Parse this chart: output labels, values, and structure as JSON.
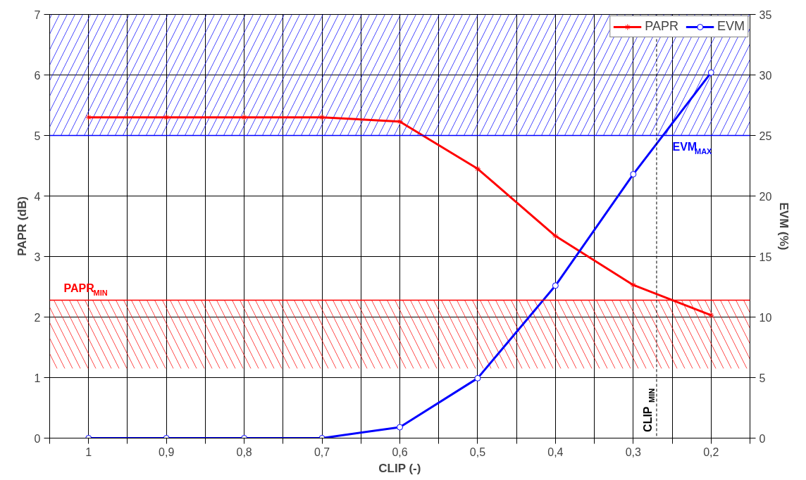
{
  "chart_data": {
    "type": "line",
    "xlabel": "CLIP (-)",
    "ylabel": "PAPR (dB)",
    "y2label": "EVM (%)",
    "x": [
      1,
      0.9,
      0.8,
      0.7,
      0.6,
      0.5,
      0.4,
      0.3,
      0.2
    ],
    "series": [
      {
        "name": "PAPR",
        "color": "#ff0000",
        "marker": "cross",
        "values": [
          5.3,
          5.3,
          5.3,
          5.3,
          5.23,
          4.45,
          3.34,
          2.53,
          2.03
        ]
      },
      {
        "name": "EVM",
        "color": "#0000ff",
        "marker": "circle",
        "axis": "y2",
        "values": [
          0,
          0,
          0,
          0,
          0.9,
          4.95,
          12.6,
          21.8,
          30.2
        ]
      }
    ],
    "xlim": [
      1.05,
      0.15
    ],
    "xticks": [
      {
        "value": 1.05,
        "label": null
      },
      1,
      {
        "value": 0.95,
        "label": null
      },
      {
        "value": 0.9,
        "label": "0,9"
      },
      {
        "value": 0.85,
        "label": null
      },
      {
        "value": 0.8,
        "label": "0,8"
      },
      {
        "value": 0.75,
        "label": null
      },
      {
        "value": 0.7,
        "label": "0,7"
      },
      {
        "value": 0.65,
        "label": null
      },
      {
        "value": 0.6,
        "label": "0,6"
      },
      {
        "value": 0.55,
        "label": null
      },
      {
        "value": 0.5,
        "label": "0,5"
      },
      {
        "value": 0.45,
        "label": null
      },
      {
        "value": 0.4,
        "label": "0,4"
      },
      {
        "value": 0.35,
        "label": null
      },
      {
        "value": 0.3,
        "label": "0,3"
      },
      {
        "value": 0.25,
        "label": null
      },
      {
        "value": 0.2,
        "label": "0,2"
      },
      {
        "value": 0.15,
        "label": null
      }
    ],
    "ylim": [
      0,
      7
    ],
    "yticks": [
      0,
      1,
      2,
      3,
      4,
      5,
      6,
      7
    ],
    "y2lim": [
      0,
      35
    ],
    "y2ticks": [
      0,
      5,
      10,
      15,
      20,
      25,
      30,
      35
    ],
    "ref_lines": [
      {
        "axis": "y",
        "value": 2.28,
        "label": "PAPR$_{MIN}$",
        "color": "#ff0000",
        "line_style": "solid"
      },
      {
        "axis": "y2",
        "value": 25,
        "label": "EVM$_{MAX}$",
        "color": "#0000ff",
        "line_style": "solid"
      },
      {
        "axis": "x",
        "value": 0.27,
        "label": "CLIP$_{MIN}$",
        "color": "#000000",
        "line_style": "dashed"
      }
    ],
    "bands": [
      {
        "axis": "y2",
        "from": 25,
        "to": 35,
        "color": "#0000ff"
      },
      {
        "axis": "y",
        "from": 1.15,
        "to": 2.28,
        "color": "#ff0000"
      }
    ],
    "grid": true,
    "legend": "top right",
    "line_style": "solid"
  }
}
